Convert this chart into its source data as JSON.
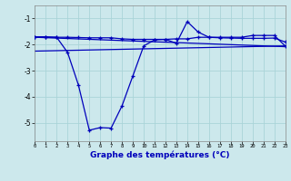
{
  "title": "Graphe des températures (°C)",
  "bg_color": "#cce8ec",
  "grid_color": "#aad4d8",
  "line_color": "#0000bb",
  "xlim": [
    0,
    23
  ],
  "ylim": [
    -5.7,
    -0.5
  ],
  "x_ticks": [
    0,
    1,
    2,
    3,
    4,
    5,
    6,
    7,
    8,
    9,
    10,
    11,
    12,
    13,
    14,
    15,
    16,
    17,
    18,
    19,
    20,
    21,
    22,
    23
  ],
  "yticks": [
    -5,
    -4,
    -3,
    -2,
    -1
  ],
  "line1": {
    "x": [
      0,
      1,
      2,
      3,
      4,
      5,
      6,
      7,
      8,
      9,
      10,
      11,
      12,
      13,
      14,
      15,
      16,
      17,
      18,
      19,
      20,
      21,
      22,
      23
    ],
    "y": [
      -1.7,
      -1.72,
      -1.72,
      -1.72,
      -1.73,
      -1.74,
      -1.74,
      -1.74,
      -1.78,
      -1.8,
      -1.8,
      -1.8,
      -1.8,
      -1.78,
      -1.78,
      -1.72,
      -1.72,
      -1.74,
      -1.75,
      -1.76,
      -1.76,
      -1.76,
      -1.75,
      -1.9
    ]
  },
  "line2": {
    "x": [
      0,
      1,
      2,
      3,
      4,
      5,
      6,
      7,
      8,
      9,
      10,
      11,
      12,
      13,
      14,
      15,
      16,
      17,
      18,
      19,
      20,
      21,
      22,
      23
    ],
    "y": [
      -1.7,
      -1.7,
      -1.72,
      -2.3,
      -3.55,
      -5.28,
      -5.18,
      -5.2,
      -4.35,
      -3.2,
      -2.05,
      -1.82,
      -1.8,
      -1.95,
      -1.12,
      -1.52,
      -1.72,
      -1.72,
      -1.72,
      -1.72,
      -1.65,
      -1.65,
      -1.65,
      -2.05
    ]
  },
  "line3": {
    "x": [
      0,
      23
    ],
    "y": [
      -1.72,
      -2.08
    ]
  },
  "line4": {
    "x": [
      0,
      23
    ],
    "y": [
      -2.25,
      -2.05
    ]
  }
}
